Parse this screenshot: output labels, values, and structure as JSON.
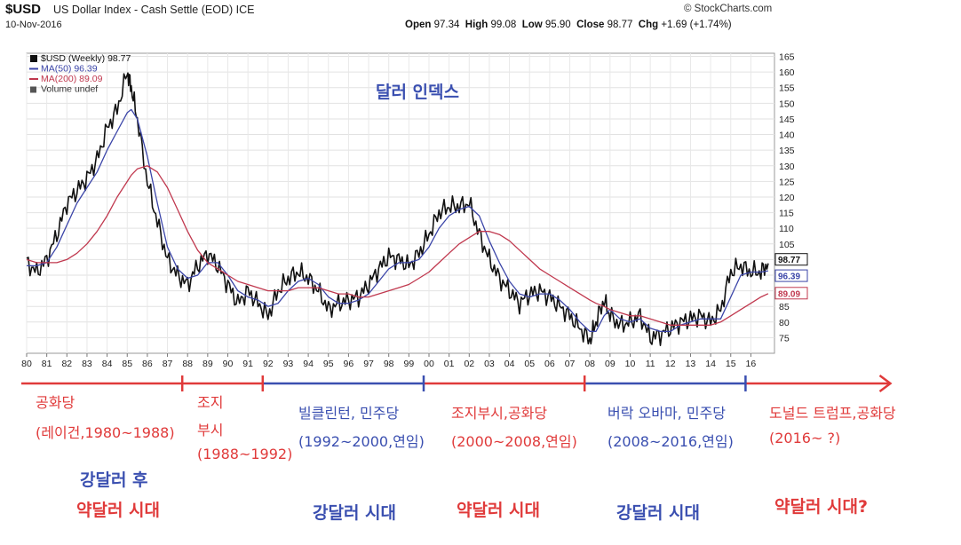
{
  "header": {
    "symbol": "$USD",
    "title": "US Dollar Index - Cash Settle (EOD) ICE",
    "date": "10-Nov-2016",
    "source": "© StockCharts.com",
    "ohlc": [
      {
        "label": "Open",
        "value": "97.34"
      },
      {
        "label": "High",
        "value": "99.08"
      },
      {
        "label": "Low",
        "value": "95.90"
      },
      {
        "label": "Close",
        "value": "98.77"
      },
      {
        "label": "Chg",
        "value": "+1.69 (+1.74%)"
      }
    ]
  },
  "legend": [
    {
      "text": "$USD (Weekly) 98.77",
      "color": "#111111"
    },
    {
      "text": "MA(50) 96.39",
      "color": "#3b45a8"
    },
    {
      "text": "MA(200) 89.09",
      "color": "#c0384e"
    },
    {
      "text": "Volume undef",
      "color": "#333333"
    }
  ],
  "chart_data": {
    "type": "line",
    "title": "달러 인덱스",
    "x": [
      1980,
      1980.5,
      1981,
      1981.5,
      1982,
      1982.5,
      1983,
      1983.5,
      1984,
      1984.5,
      1985,
      1985.2,
      1985.5,
      1986,
      1986.5,
      1987,
      1987.5,
      1988,
      1988.5,
      1989,
      1989.5,
      1990,
      1990.5,
      1991,
      1991.5,
      1992,
      1992.5,
      1993,
      1993.5,
      1994,
      1994.5,
      1995,
      1995.5,
      1996,
      1996.5,
      1997,
      1997.5,
      1998,
      1998.5,
      1999,
      1999.5,
      2000,
      2000.5,
      2001,
      2001.5,
      2002,
      2002.5,
      2003,
      2003.5,
      2004,
      2004.5,
      2005,
      2005.5,
      2006,
      2006.5,
      2007,
      2007.5,
      2008,
      2008.3,
      2008.7,
      2009,
      2009.5,
      2010,
      2010.5,
      2011,
      2011.5,
      2012,
      2012.5,
      2013,
      2013.5,
      2014,
      2014.5,
      2015,
      2015.5,
      2016,
      2016.5,
      2016.86
    ],
    "series": [
      {
        "name": "$USD (Weekly)",
        "color": "#111111",
        "values": [
          99,
          96,
          100,
          108,
          118,
          122,
          126,
          132,
          142,
          148,
          160,
          155,
          145,
          125,
          112,
          100,
          95,
          92,
          98,
          102,
          98,
          92,
          86,
          90,
          86,
          82,
          90,
          94,
          96,
          94,
          90,
          84,
          86,
          87,
          88,
          92,
          97,
          101,
          100,
          98,
          102,
          108,
          115,
          117,
          117,
          118,
          108,
          100,
          94,
          90,
          86,
          89,
          90,
          88,
          85,
          82,
          78,
          74,
          80,
          87,
          82,
          79,
          80,
          82,
          75,
          76,
          78,
          80,
          81,
          82,
          80,
          84,
          96,
          98,
          96,
          96,
          98.77
        ]
      },
      {
        "name": "MA(50)",
        "color": "#3b45a8",
        "values": [
          98,
          98,
          99,
          104,
          111,
          118,
          123,
          128,
          135,
          141,
          147,
          148,
          145,
          133,
          118,
          104,
          97,
          94,
          95,
          99,
          99,
          95,
          90,
          88,
          87,
          85,
          86,
          90,
          93,
          94,
          92,
          88,
          86,
          86,
          87,
          89,
          93,
          97,
          99,
          99,
          100,
          104,
          110,
          114,
          116,
          117,
          114,
          106,
          99,
          93,
          89,
          88,
          89,
          89,
          87,
          84,
          80,
          77,
          77,
          82,
          84,
          81,
          80,
          81,
          78,
          77,
          77,
          79,
          80,
          81,
          81,
          81,
          88,
          95,
          96,
          96,
          96.39
        ]
      },
      {
        "name": "MA(200)",
        "color": "#c0384e",
        "values": [
          100,
          99,
          99,
          99,
          100,
          102,
          105,
          109,
          114,
          120,
          125,
          127,
          129,
          130,
          128,
          123,
          116,
          109,
          103,
          99,
          97,
          95,
          93,
          92,
          91,
          90,
          90,
          90,
          91,
          91,
          91,
          90,
          89,
          89,
          88,
          88,
          89,
          90,
          91,
          92,
          94,
          96,
          99,
          102,
          105,
          107,
          109,
          109,
          108,
          106,
          103,
          100,
          97,
          95,
          93,
          91,
          89,
          87,
          86,
          85,
          84,
          83,
          82,
          82,
          81,
          80,
          79,
          79,
          79,
          79,
          79,
          80,
          82,
          84,
          86,
          88,
          89.09
        ]
      }
    ],
    "ylim": [
      70,
      166
    ],
    "y_ticks": [
      75,
      80,
      85,
      90,
      95,
      100,
      105,
      110,
      115,
      120,
      125,
      130,
      135,
      140,
      145,
      150,
      155,
      160,
      165
    ],
    "x_ticks": [
      "80",
      "81",
      "82",
      "83",
      "84",
      "85",
      "86",
      "87",
      "88",
      "89",
      "90",
      "91",
      "92",
      "93",
      "94",
      "95",
      "96",
      "97",
      "98",
      "99",
      "00",
      "01",
      "02",
      "03",
      "04",
      "05",
      "06",
      "07",
      "08",
      "09",
      "10",
      "11",
      "12",
      "13",
      "14",
      "15",
      "16"
    ],
    "last_value_labels": [
      "98.77",
      "96.39",
      "89.09"
    ],
    "grid": true
  },
  "timeline": {
    "segments": [
      {
        "from": 1980,
        "to": 1988,
        "color": "#e03a3a"
      },
      {
        "from": 1988,
        "to": 1992,
        "color": "#e03a3a"
      },
      {
        "from": 1992,
        "to": 2000,
        "color": "#3a4fb0"
      },
      {
        "from": 2000,
        "to": 2008,
        "color": "#e03a3a"
      },
      {
        "from": 2008,
        "to": 2016,
        "color": "#3a4fb0"
      },
      {
        "from": 2016,
        "to": 2023.2,
        "color": "#e03a3a"
      }
    ]
  },
  "eras": [
    {
      "name": "공화당",
      "period": "(레이건,1980~1988)"
    },
    {
      "name1": "조지",
      "name2": "부시",
      "period": "(1988~1992)"
    },
    {
      "name": "빌클린턴, 민주당",
      "period": "(1992~2000,연임)"
    },
    {
      "name": "조지부시,공화당",
      "period": "(2000~2008,연임)"
    },
    {
      "name": "버락 오바마, 민주당",
      "period": "(2008~2016,연임)"
    },
    {
      "name": "도널드 트럼프,공화당",
      "period": "(2016~ ?)"
    }
  ],
  "phases": {
    "p1a": "강달러 후",
    "p1b": "약달러 시대",
    "p2": "강달러 시대",
    "p3": "약달러 시대",
    "p4": "강달러 시대",
    "p5": "약달러 시대?"
  }
}
